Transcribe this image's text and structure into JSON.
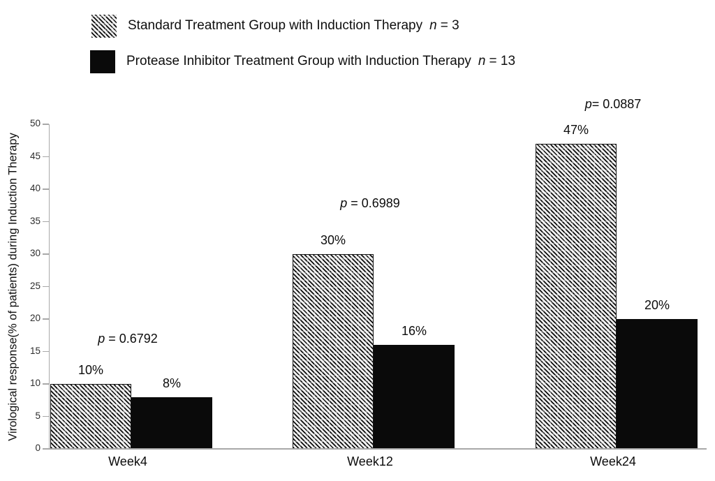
{
  "legend": {
    "items": [
      {
        "label": "Standard Treatment Group with Induction Therapy",
        "n_symbol": "n",
        "n_value": "= 3",
        "swatch": "hatched"
      },
      {
        "label": "Protease Inhibitor Treatment Group with Induction Therapy",
        "n_symbol": "n",
        "n_value": "= 13",
        "swatch": "solid-black"
      }
    ]
  },
  "chart_data": {
    "type": "bar",
    "title": "",
    "categories": [
      "Week4",
      "Week12",
      "Week24"
    ],
    "series": [
      {
        "name": "Standard Treatment Group with Induction Therapy",
        "style": "hatched",
        "values": [
          10,
          30,
          47
        ],
        "value_labels": [
          "10%",
          "30%",
          "47%"
        ]
      },
      {
        "name": "Protease Inhibitor Treatment Group with Induction Therapy",
        "style": "solid-black",
        "values": [
          8,
          16,
          20
        ],
        "value_labels": [
          "8%",
          "16%",
          "20%"
        ]
      }
    ],
    "p_values": [
      "p = 0.6792",
      "p = 0.6989",
      "p= 0.0887"
    ],
    "xlabel": "",
    "ylabel": "Virological response(% of patients) during Induction Therapy",
    "ylim": [
      0,
      50
    ],
    "ytick_step": 5,
    "yticks": [
      0,
      5,
      10,
      15,
      20,
      25,
      30,
      35,
      40,
      45,
      50
    ],
    "grid": false,
    "legend_position": "top-left",
    "colors": {
      "bar_black": "#0a0a0a",
      "axis_line": "#a8a8a8",
      "text": "#0c0c0c"
    }
  }
}
